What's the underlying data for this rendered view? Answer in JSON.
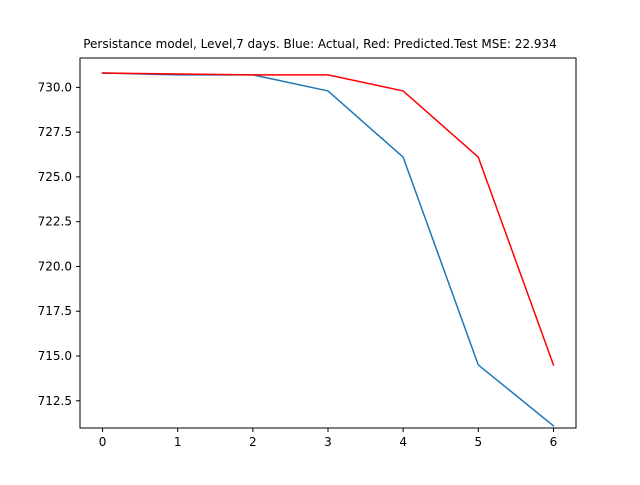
{
  "chart_data": {
    "type": "line",
    "title": "Persistance model, Level,7 days. Blue: Actual, Red: Predicted.Test MSE: 22.934",
    "xlabel": "",
    "ylabel": "",
    "x": [
      0,
      1,
      2,
      3,
      4,
      5,
      6
    ],
    "xlim": [
      -0.3,
      6.3
    ],
    "ylim": [
      710.98,
      731.64
    ],
    "x_ticks": [
      "0",
      "1",
      "2",
      "3",
      "4",
      "5",
      "6"
    ],
    "y_ticks": [
      "712.5",
      "715.0",
      "717.5",
      "720.0",
      "722.5",
      "725.0",
      "727.5",
      "730.0"
    ],
    "grid": false,
    "series": [
      {
        "key": "actual",
        "color": "#1f77b4",
        "values": [
          730.8,
          730.7,
          730.7,
          729.8,
          726.1,
          714.5,
          711.1
        ]
      },
      {
        "key": "predicted",
        "color": "#ff0000",
        "values": [
          730.8,
          null,
          730.7,
          730.7,
          729.8,
          726.1,
          714.5
        ]
      }
    ]
  }
}
